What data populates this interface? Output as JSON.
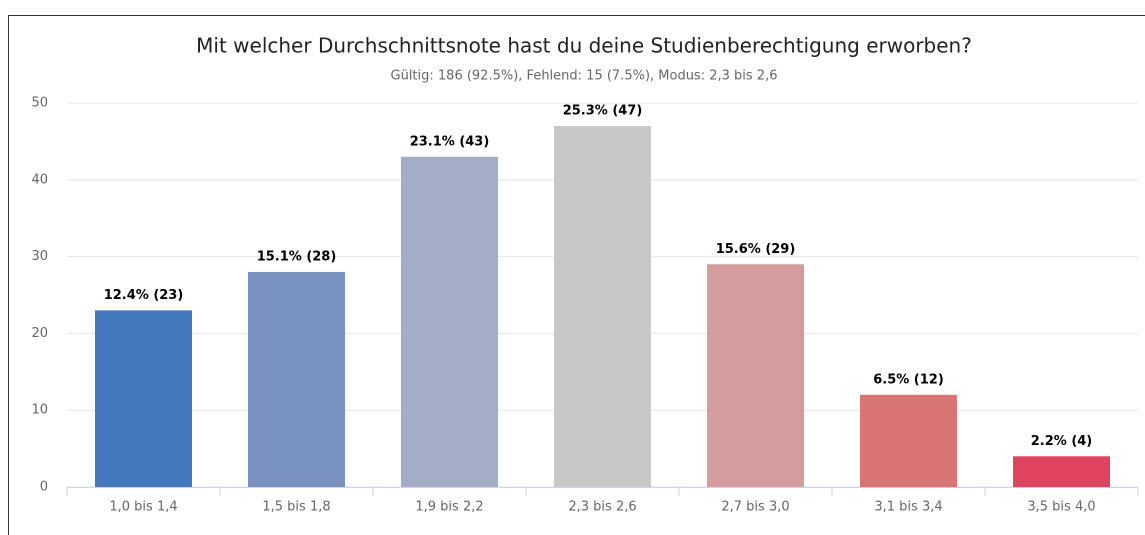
{
  "chart_data": {
    "type": "bar",
    "title": "Mit welcher Durchschnittsnote hast du deine Studienberechtigung erworben?",
    "subtitle": "Gültig: 186 (92.5%), Fehlend: 15 (7.5%), Modus: 2,3 bis 2,6",
    "categories": [
      "1,0 bis 1,4",
      "1,5 bis 1,8",
      "1,9 bis 2,2",
      "2,3 bis 2,6",
      "2,7 bis 3,0",
      "3,1 bis 3,4",
      "3,5 bis 4,0"
    ],
    "values": [
      23,
      28,
      43,
      47,
      29,
      12,
      4
    ],
    "value_labels": [
      "12.4% (23)",
      "15.1% (28)",
      "23.1% (43)",
      "25.3% (47)",
      "15.6% (29)",
      "6.5% (12)",
      "2.2% (4)"
    ],
    "colors": [
      "#4477bb",
      "#7891bf",
      "#a3adc5",
      "#c8c8c8",
      "#d49d9d",
      "#d97474",
      "#e04460"
    ],
    "ylim": [
      0,
      50
    ],
    "yticks": [
      0,
      10,
      20,
      30,
      40,
      50
    ],
    "grid": true
  }
}
